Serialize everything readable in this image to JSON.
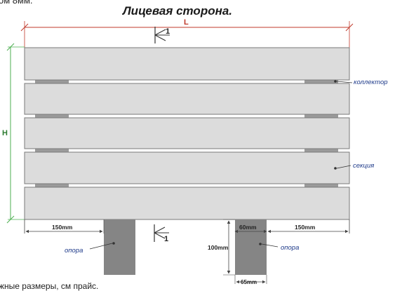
{
  "texts": {
    "clip_top": "ом 8мм.",
    "title": "Лицевая сторона.",
    "bottom_note": "жные размеры, см прайс."
  },
  "dims": {
    "L": "L",
    "H": "H",
    "section_marker": "1",
    "left_offset": "150mm",
    "right_offset": "150mm",
    "support_depth": "60mm",
    "support_height": "100mm",
    "support_width": "65mm"
  },
  "callouts": {
    "collector": "коллектор",
    "section": "секция",
    "support_left": "опора",
    "support_right": "опора"
  },
  "colors": {
    "panel_fill": "#dcdcdc",
    "panel_stroke": "#7a7a7a",
    "support_fill": "#858585",
    "dim_line": "#444444",
    "accent_red": "#c0392b",
    "accent_green": "#4caf50",
    "label_blue": "#1f3b8a"
  }
}
